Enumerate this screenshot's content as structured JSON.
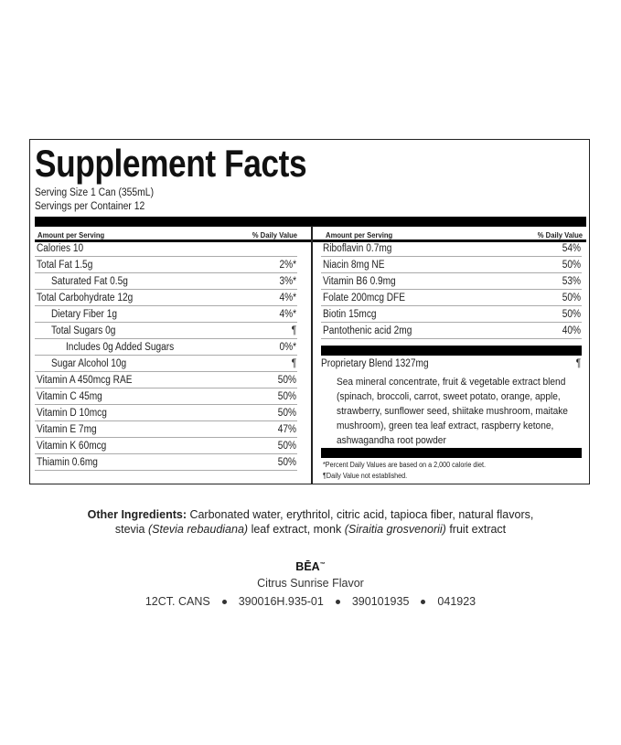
{
  "panel": {
    "title": "Supplement Facts",
    "serving_size": "Serving Size 1 Can (355mL)",
    "servings_per_container": "Servings per Container 12",
    "header_amount": "Amount per Serving",
    "header_dv": "% Daily Value",
    "left_rows": [
      {
        "name": "Calories 10",
        "dv": "",
        "indent": 0
      },
      {
        "name": "Total Fat 1.5g",
        "dv": "2%*",
        "indent": 0
      },
      {
        "name": "Saturated Fat 0.5g",
        "dv": "3%*",
        "indent": 1
      },
      {
        "name": "Total Carbohydrate 12g",
        "dv": "4%*",
        "indent": 0
      },
      {
        "name": "Dietary Fiber 1g",
        "dv": "4%*",
        "indent": 1
      },
      {
        "name": "Total Sugars 0g",
        "dv": "¶",
        "indent": 1
      },
      {
        "name": "Includes 0g Added Sugars",
        "dv": "0%*",
        "indent": 2
      },
      {
        "name": "Sugar Alcohol 10g",
        "dv": "¶",
        "indent": 1
      },
      {
        "name": "Vitamin A 450mcg RAE",
        "dv": "50%",
        "indent": 0
      },
      {
        "name": "Vitamin C 45mg",
        "dv": "50%",
        "indent": 0
      },
      {
        "name": "Vitamin D 10mcg",
        "dv": "50%",
        "indent": 0
      },
      {
        "name": "Vitamin E 7mg",
        "dv": "47%",
        "indent": 0
      },
      {
        "name": "Vitamin K 60mcg",
        "dv": "50%",
        "indent": 0
      },
      {
        "name": "Thiamin 0.6mg",
        "dv": "50%",
        "indent": 0
      }
    ],
    "right_rows": [
      {
        "name": "Riboflavin 0.7mg",
        "dv": "54%"
      },
      {
        "name": "Niacin 8mg NE",
        "dv": "50%"
      },
      {
        "name": "Vitamin B6 0.9mg",
        "dv": "53%"
      },
      {
        "name": "Folate 200mcg DFE",
        "dv": "50%"
      },
      {
        "name": "Biotin 15mcg",
        "dv": "50%"
      },
      {
        "name": "Pantothenic acid 2mg",
        "dv": "40%"
      }
    ],
    "blend": {
      "name": "Proprietary Blend 1327mg",
      "dv": "¶",
      "description": "Sea mineral concentrate, fruit & vegetable extract blend (spinach, broccoli, carrot, sweet potato, orange, apple, strawberry, sunflower seed, shiitake mushroom, maitake mushroom), green tea leaf extract, raspberry ketone, ashwagandha root powder"
    },
    "footnote_1": "*Percent Daily Values are based on a 2,000 calorie diet.",
    "footnote_2": "¶Daily Value not established."
  },
  "other_ingredients": {
    "label": "Other Ingredients:",
    "text_1": " Carbonated water, erythritol, citric acid, tapioca fiber, natural flavors,",
    "text_2a": "stevia ",
    "italic_1": "(Stevia rebaudiana)",
    "text_2b": " leaf extract, monk ",
    "italic_2": "(Siraitia grosvenorii)",
    "text_2c": " fruit extract"
  },
  "brand": {
    "name": "BĒA",
    "tm": "™",
    "flavor": "Citrus Sunrise Flavor",
    "codes": [
      "12CT. CANS",
      "390016H.935-01",
      "390101935",
      "041923"
    ]
  }
}
